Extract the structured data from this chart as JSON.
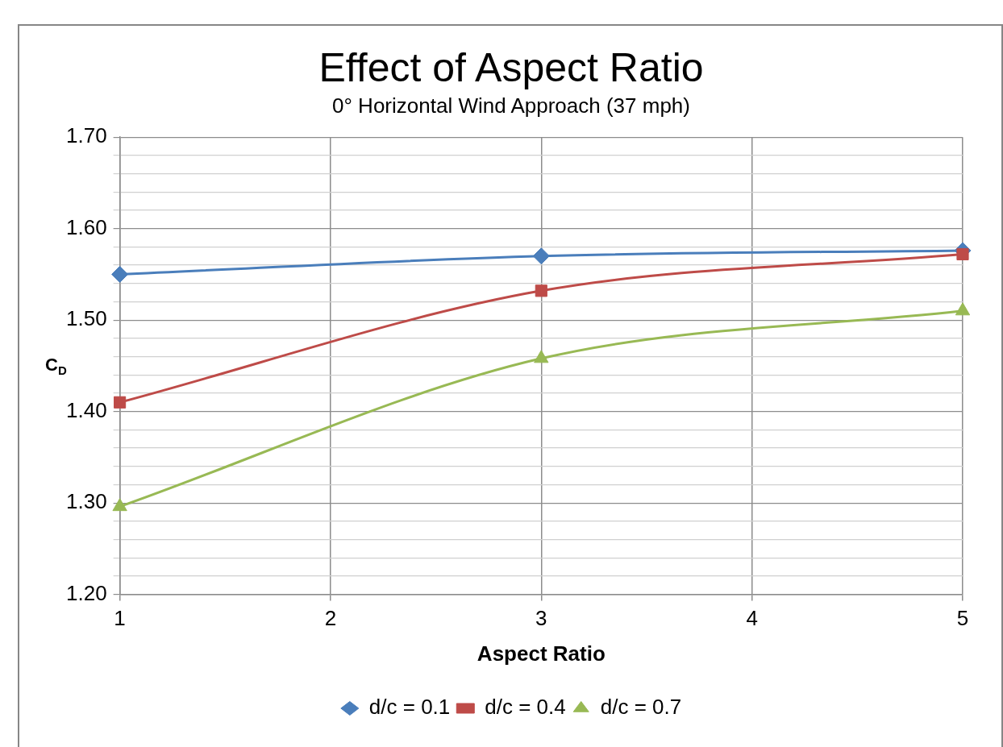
{
  "chart_data": {
    "type": "line",
    "title": "Effect of Aspect Ratio",
    "subtitle": "0° Horizontal Wind Approach (37 mph)",
    "xlabel": "Aspect Ratio",
    "ylabel": "C$_{D}$",
    "x": [
      1,
      3,
      5
    ],
    "series": [
      {
        "name": "d/c = 0.1",
        "color": "#4a7ebb",
        "marker": "diamond",
        "values": [
          1.55,
          1.57,
          1.576
        ]
      },
      {
        "name": "d/c = 0.4",
        "color": "#be4b48",
        "marker": "square",
        "values": [
          1.41,
          1.532,
          1.572
        ]
      },
      {
        "name": "d/c = 0.7",
        "color": "#98b954",
        "marker": "triangle",
        "values": [
          1.296,
          1.458,
          1.51
        ]
      }
    ],
    "xlim": [
      1,
      5
    ],
    "xticks": [
      1,
      2,
      3,
      4,
      5
    ],
    "ylim": [
      1.2,
      1.7
    ],
    "yticks": [
      {
        "value": 1.2,
        "label": "1.20"
      },
      {
        "value": 1.22,
        "label": null
      },
      {
        "value": 1.24,
        "label": null
      },
      {
        "value": 1.26,
        "label": null
      },
      {
        "value": 1.28,
        "label": null
      },
      {
        "value": 1.3,
        "label": "1.30"
      },
      {
        "value": 1.32,
        "label": null
      },
      {
        "value": 1.34,
        "label": null
      },
      {
        "value": 1.36,
        "label": null
      },
      {
        "value": 1.38,
        "label": null
      },
      {
        "value": 1.4,
        "label": "1.40"
      },
      {
        "value": 1.42,
        "label": null
      },
      {
        "value": 1.44,
        "label": null
      },
      {
        "value": 1.46,
        "label": null
      },
      {
        "value": 1.48,
        "label": null
      },
      {
        "value": 1.5,
        "label": "1.50"
      },
      {
        "value": 1.52,
        "label": null
      },
      {
        "value": 1.54,
        "label": null
      },
      {
        "value": 1.56,
        "label": null
      },
      {
        "value": 1.58,
        "label": null
      },
      {
        "value": 1.6,
        "label": "1.60"
      },
      {
        "value": 1.62,
        "label": null
      },
      {
        "value": 1.64,
        "label": null
      },
      {
        "value": 1.66,
        "label": null
      },
      {
        "value": 1.68,
        "label": null
      },
      {
        "value": 1.7,
        "label": "1.70"
      }
    ],
    "grid": true,
    "legend": "bottom",
    "line_style": "solid"
  }
}
